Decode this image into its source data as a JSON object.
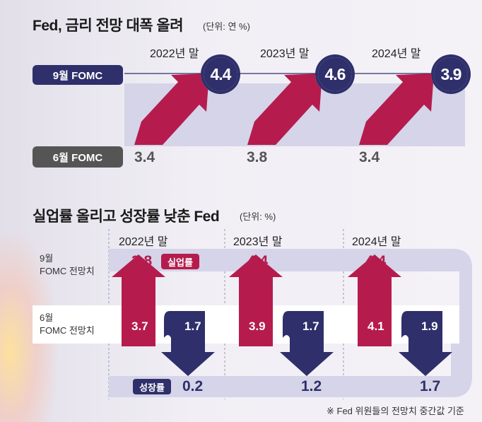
{
  "chart_data": [
    {
      "type": "bar",
      "title": "Fed, 금리 전망 대폭 올려",
      "unit": "(단위: 연 %)",
      "categories": [
        "2022년 말",
        "2023년 말",
        "2024년 말"
      ],
      "series": [
        {
          "name": "9월 FOMC",
          "values": [
            4.4,
            4.6,
            3.9
          ]
        },
        {
          "name": "6월 FOMC",
          "values": [
            3.4,
            3.8,
            3.4
          ]
        }
      ]
    },
    {
      "type": "bar",
      "title": "실업률 올리고 성장률 낮춘 Fed",
      "unit": "(단위: %)",
      "categories": [
        "2022년 말",
        "2023년 말",
        "2024년 말"
      ],
      "row_labels": {
        "sep_line1": "9월",
        "sep_line2": "FOMC 전망치",
        "jun_line1": "6월",
        "jun_line2": "FOMC 전망치"
      },
      "series": [
        {
          "name": "실업률",
          "sep": [
            3.8,
            4.4,
            4.4
          ],
          "jun": [
            3.7,
            3.9,
            4.1
          ]
        },
        {
          "name": "성장률",
          "sep": [
            0.2,
            1.2,
            1.7
          ],
          "jun": [
            1.7,
            1.7,
            1.9
          ]
        }
      ],
      "note": "※ Fed 위원들의 전망치 중간값 기준"
    }
  ],
  "colors": {
    "navy": "#2f2f6b",
    "crimson": "#b51c4d",
    "gray": "#555555",
    "lavender": "#d5d4e8"
  }
}
